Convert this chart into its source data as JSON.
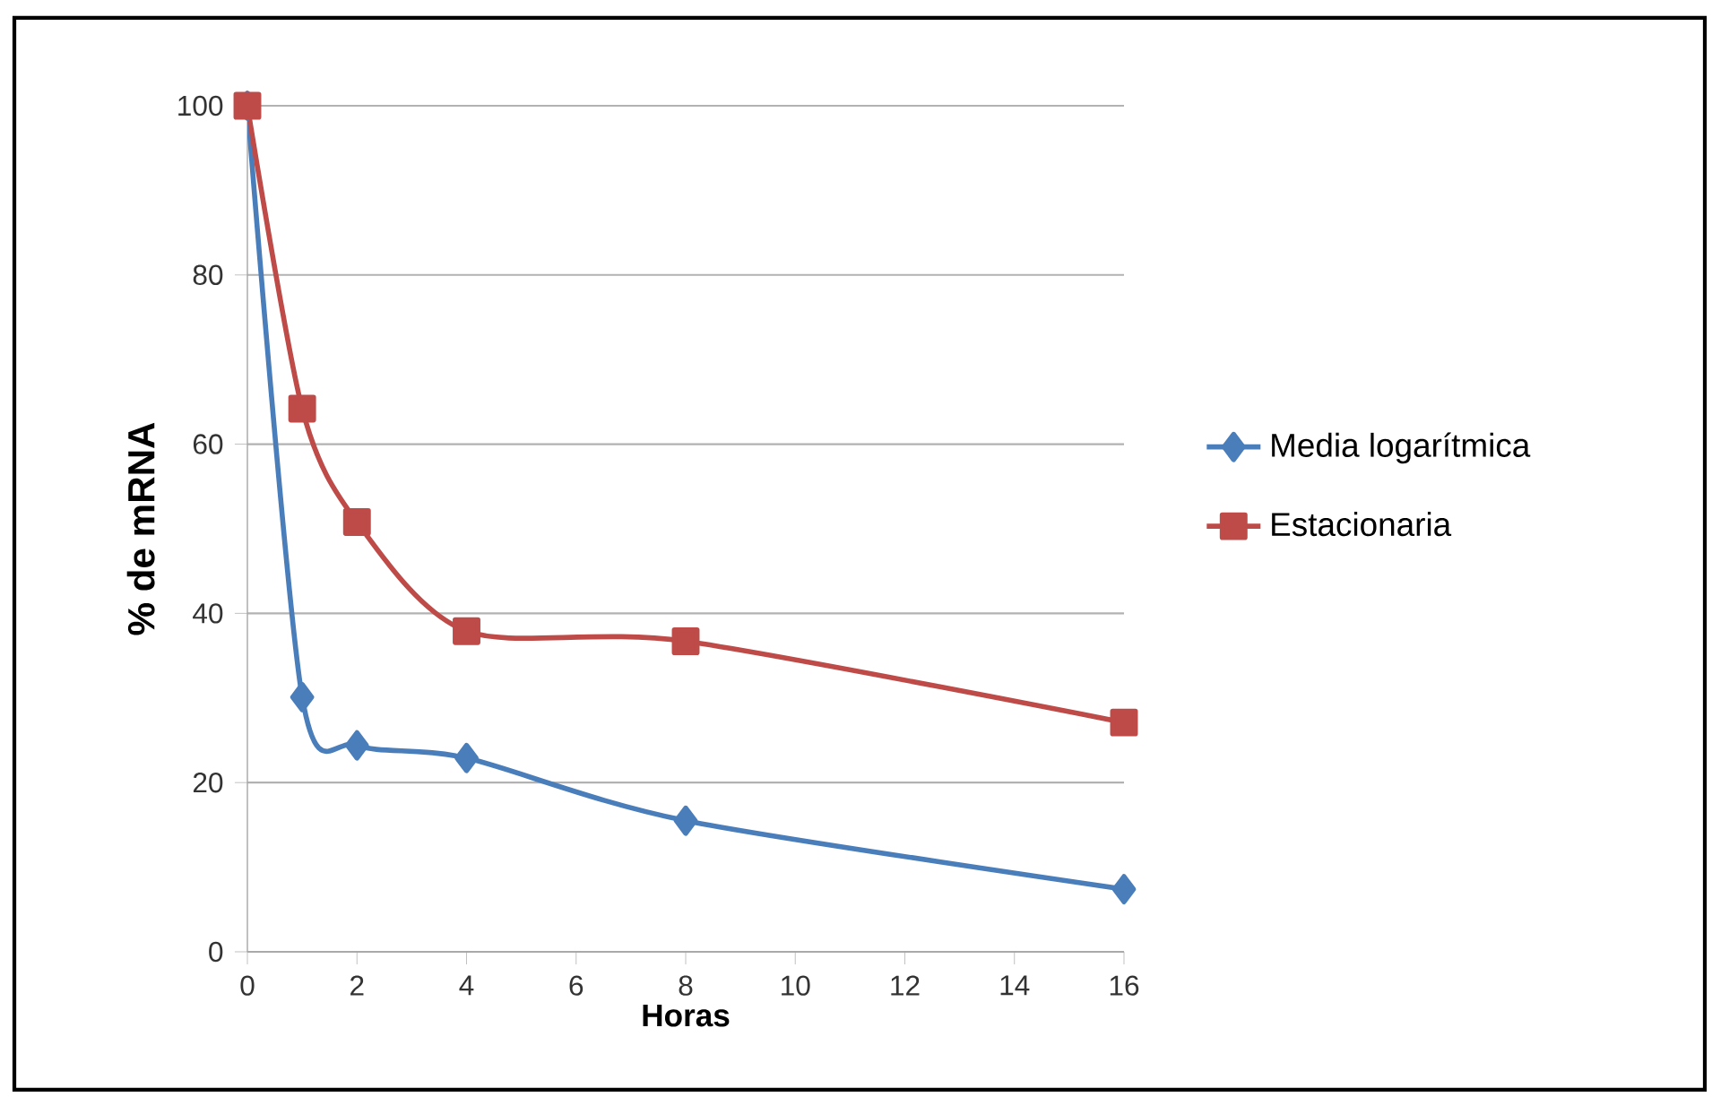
{
  "chart_data": {
    "type": "line",
    "xlabel": "Horas",
    "ylabel": "% de mRNA",
    "x": [
      0,
      1,
      2,
      4,
      8,
      16
    ],
    "series": [
      {
        "name": "Media logarítmica",
        "color": "#4a7ebb",
        "marker": "diamond",
        "values": [
          100,
          30.1,
          24.4,
          22.9,
          15.5,
          7.4
        ]
      },
      {
        "name": "Estacionaria",
        "color": "#be4b48",
        "marker": "square",
        "values": [
          100,
          64.2,
          50.8,
          37.9,
          36.7,
          27.1
        ]
      }
    ],
    "xlim": [
      0,
      16
    ],
    "xticks": [
      0,
      2,
      4,
      6,
      8,
      10,
      12,
      14,
      16
    ],
    "ylim": [
      0,
      100
    ],
    "yticks": [
      0,
      20,
      40,
      60,
      80,
      100
    ],
    "grid": "y",
    "legend": "right"
  }
}
